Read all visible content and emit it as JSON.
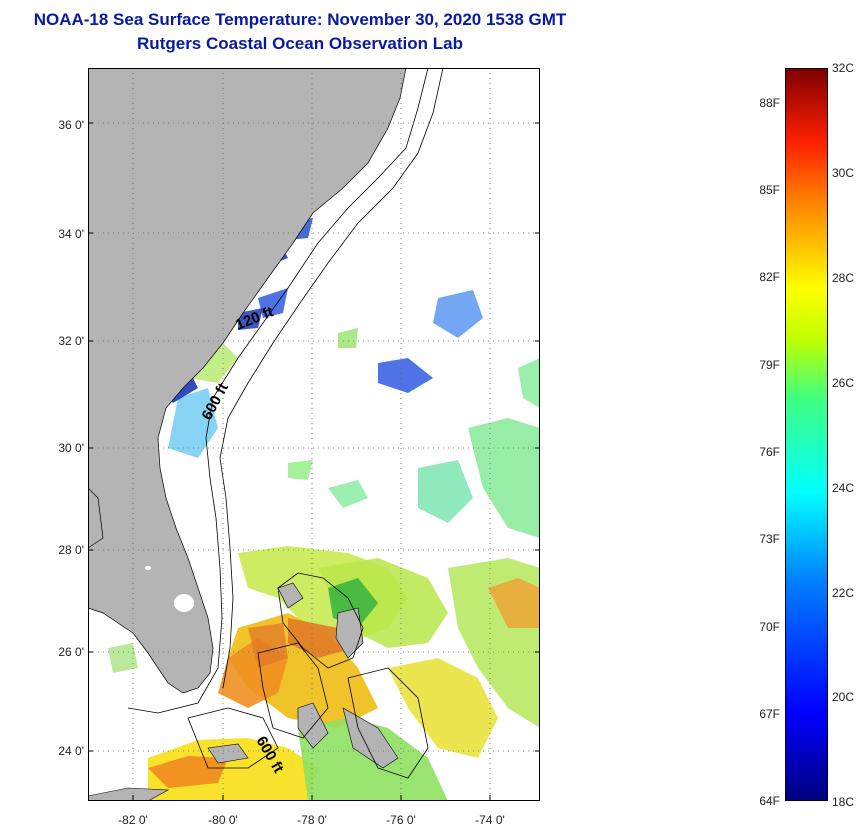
{
  "title": "NOAA-18 Sea Surface Temperature:  November 30, 2020 1538 GMT",
  "subtitle": "Rutgers Coastal Ocean Observation Lab",
  "lat_labels": [
    "36 0'",
    "34 0'",
    "32 0'",
    "30 0'",
    "28 0'",
    "26 0'",
    "24 0'"
  ],
  "lon_labels": [
    "-82 0'",
    "-80 0'",
    "-78 0'",
    "-76 0'",
    "-74 0'"
  ],
  "contour_labels": [
    "120 ft",
    "600 ft",
    "600 ft"
  ],
  "colorbar": {
    "fahrenheit": [
      "88F",
      "85F",
      "82F",
      "79F",
      "76F",
      "73F",
      "70F",
      "67F",
      "64F"
    ],
    "celsius": [
      "32C",
      "30C",
      "28C",
      "26C",
      "24C",
      "22C",
      "20C",
      "18C"
    ],
    "range_c": [
      18,
      32
    ]
  },
  "colors": {
    "land": "#b4b4b4",
    "title": "#0a1aa0",
    "ocean_cloud": "#ffffff"
  }
}
